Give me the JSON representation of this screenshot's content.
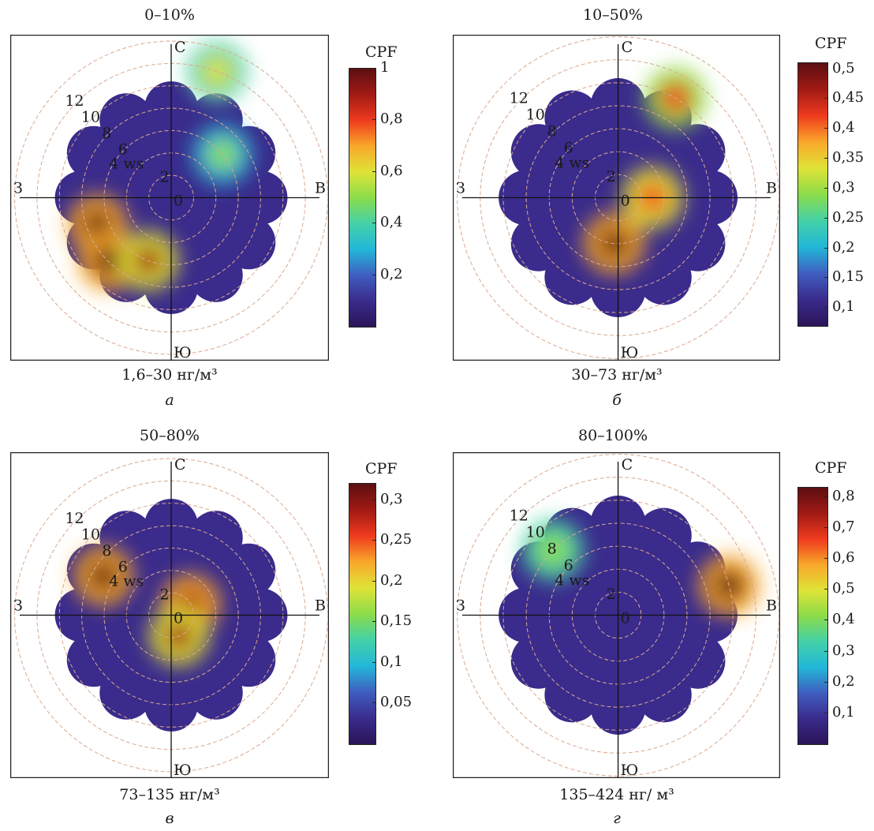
{
  "chart_data": [
    {
      "type": "heatmap",
      "subtype": "polar-bivariate",
      "title": "0–10%",
      "concentration_range": "1,6–30 нг/м³",
      "letter": "а",
      "colorbar_title": "CPF",
      "colorbar_ticks": [
        "1",
        "0,8",
        "0,6",
        "0,4",
        "0,2"
      ],
      "colorbar_tick_values": [
        1,
        0.8,
        0.6,
        0.4,
        0.2
      ],
      "colorbar_range": [
        0,
        1
      ],
      "radial_labels": [
        "12",
        "10",
        "8",
        "6",
        "4 ws",
        "2",
        "0"
      ],
      "directions": {
        "n": "С",
        "e": "В",
        "s": "Ю",
        "w": "З"
      },
      "hotspots": [
        {
          "direction_deg": 250,
          "ws": 7,
          "cpf": 1.0
        },
        {
          "direction_deg": 225,
          "ws": 8,
          "cpf": 1.0
        },
        {
          "direction_deg": 200,
          "ws": 6,
          "cpf": 0.9
        },
        {
          "direction_deg": 20,
          "ws": 12,
          "cpf": 0.55
        },
        {
          "direction_deg": 50,
          "ws": 6,
          "cpf": 0.45
        }
      ]
    },
    {
      "type": "heatmap",
      "subtype": "polar-bivariate",
      "title": "10–50%",
      "concentration_range": "30–73 нг/м³",
      "letter": "б",
      "colorbar_title": "CPF",
      "colorbar_ticks": [
        "0,5",
        "0,45",
        "0,4",
        "0,35",
        "0,3",
        "0,25",
        "0,2",
        "0,15",
        "0,1"
      ],
      "colorbar_tick_values": [
        0.5,
        0.45,
        0.4,
        0.35,
        0.3,
        0.25,
        0.2,
        0.15,
        0.1
      ],
      "colorbar_range": [
        0.07,
        0.51
      ],
      "radial_labels": [
        "12",
        "10",
        "8",
        "6",
        "4 ws",
        "2",
        "0"
      ],
      "directions": {
        "n": "С",
        "e": "В",
        "s": "Ю",
        "w": "З"
      },
      "hotspots": [
        {
          "direction_deg": 185,
          "ws": 4,
          "cpf": 0.5
        },
        {
          "direction_deg": 30,
          "ws": 10,
          "cpf": 0.4
        },
        {
          "direction_deg": 90,
          "ws": 3,
          "cpf": 0.42
        }
      ]
    },
    {
      "type": "heatmap",
      "subtype": "polar-bivariate",
      "title": "50–80%",
      "concentration_range": "73–135 нг/м³",
      "letter": "в",
      "colorbar_title": "CPF",
      "colorbar_ticks": [
        "0,3",
        "0,25",
        "0,2",
        "0,15",
        "0,1",
        "0,05"
      ],
      "colorbar_tick_values": [
        0.3,
        0.25,
        0.2,
        0.15,
        0.1,
        0.05
      ],
      "colorbar_range": [
        0,
        0.32
      ],
      "radial_labels": [
        "12",
        "10",
        "8",
        "6",
        "4 ws",
        "2",
        "0"
      ],
      "directions": {
        "n": "С",
        "e": "В",
        "s": "Ю",
        "w": "З"
      },
      "hotspots": [
        {
          "direction_deg": 300,
          "ws": 7,
          "cpf": 0.32
        },
        {
          "direction_deg": 60,
          "ws": 2,
          "cpf": 0.3
        },
        {
          "direction_deg": 160,
          "ws": 2,
          "cpf": 0.28
        }
      ]
    },
    {
      "type": "heatmap",
      "subtype": "polar-bivariate",
      "title": "80–100%",
      "concentration_range": "135–424 нг/ м³",
      "letter": "г",
      "colorbar_title": "CPF",
      "colorbar_ticks": [
        "0,8",
        "0,7",
        "0,6",
        "0,5",
        "0,4",
        "0,3",
        "0,2",
        "0,1"
      ],
      "colorbar_tick_values": [
        0.8,
        0.7,
        0.6,
        0.5,
        0.4,
        0.3,
        0.2,
        0.1
      ],
      "colorbar_range": [
        0,
        0.83
      ],
      "radial_labels": [
        "12",
        "10",
        "8",
        "6",
        "4 ws",
        "2",
        "0"
      ],
      "directions": {
        "n": "С",
        "e": "В",
        "s": "Ю",
        "w": "З"
      },
      "hotspots": [
        {
          "direction_deg": 75,
          "ws": 10,
          "cpf": 0.8
        },
        {
          "direction_deg": 315,
          "ws": 8,
          "cpf": 0.45
        }
      ]
    }
  ]
}
